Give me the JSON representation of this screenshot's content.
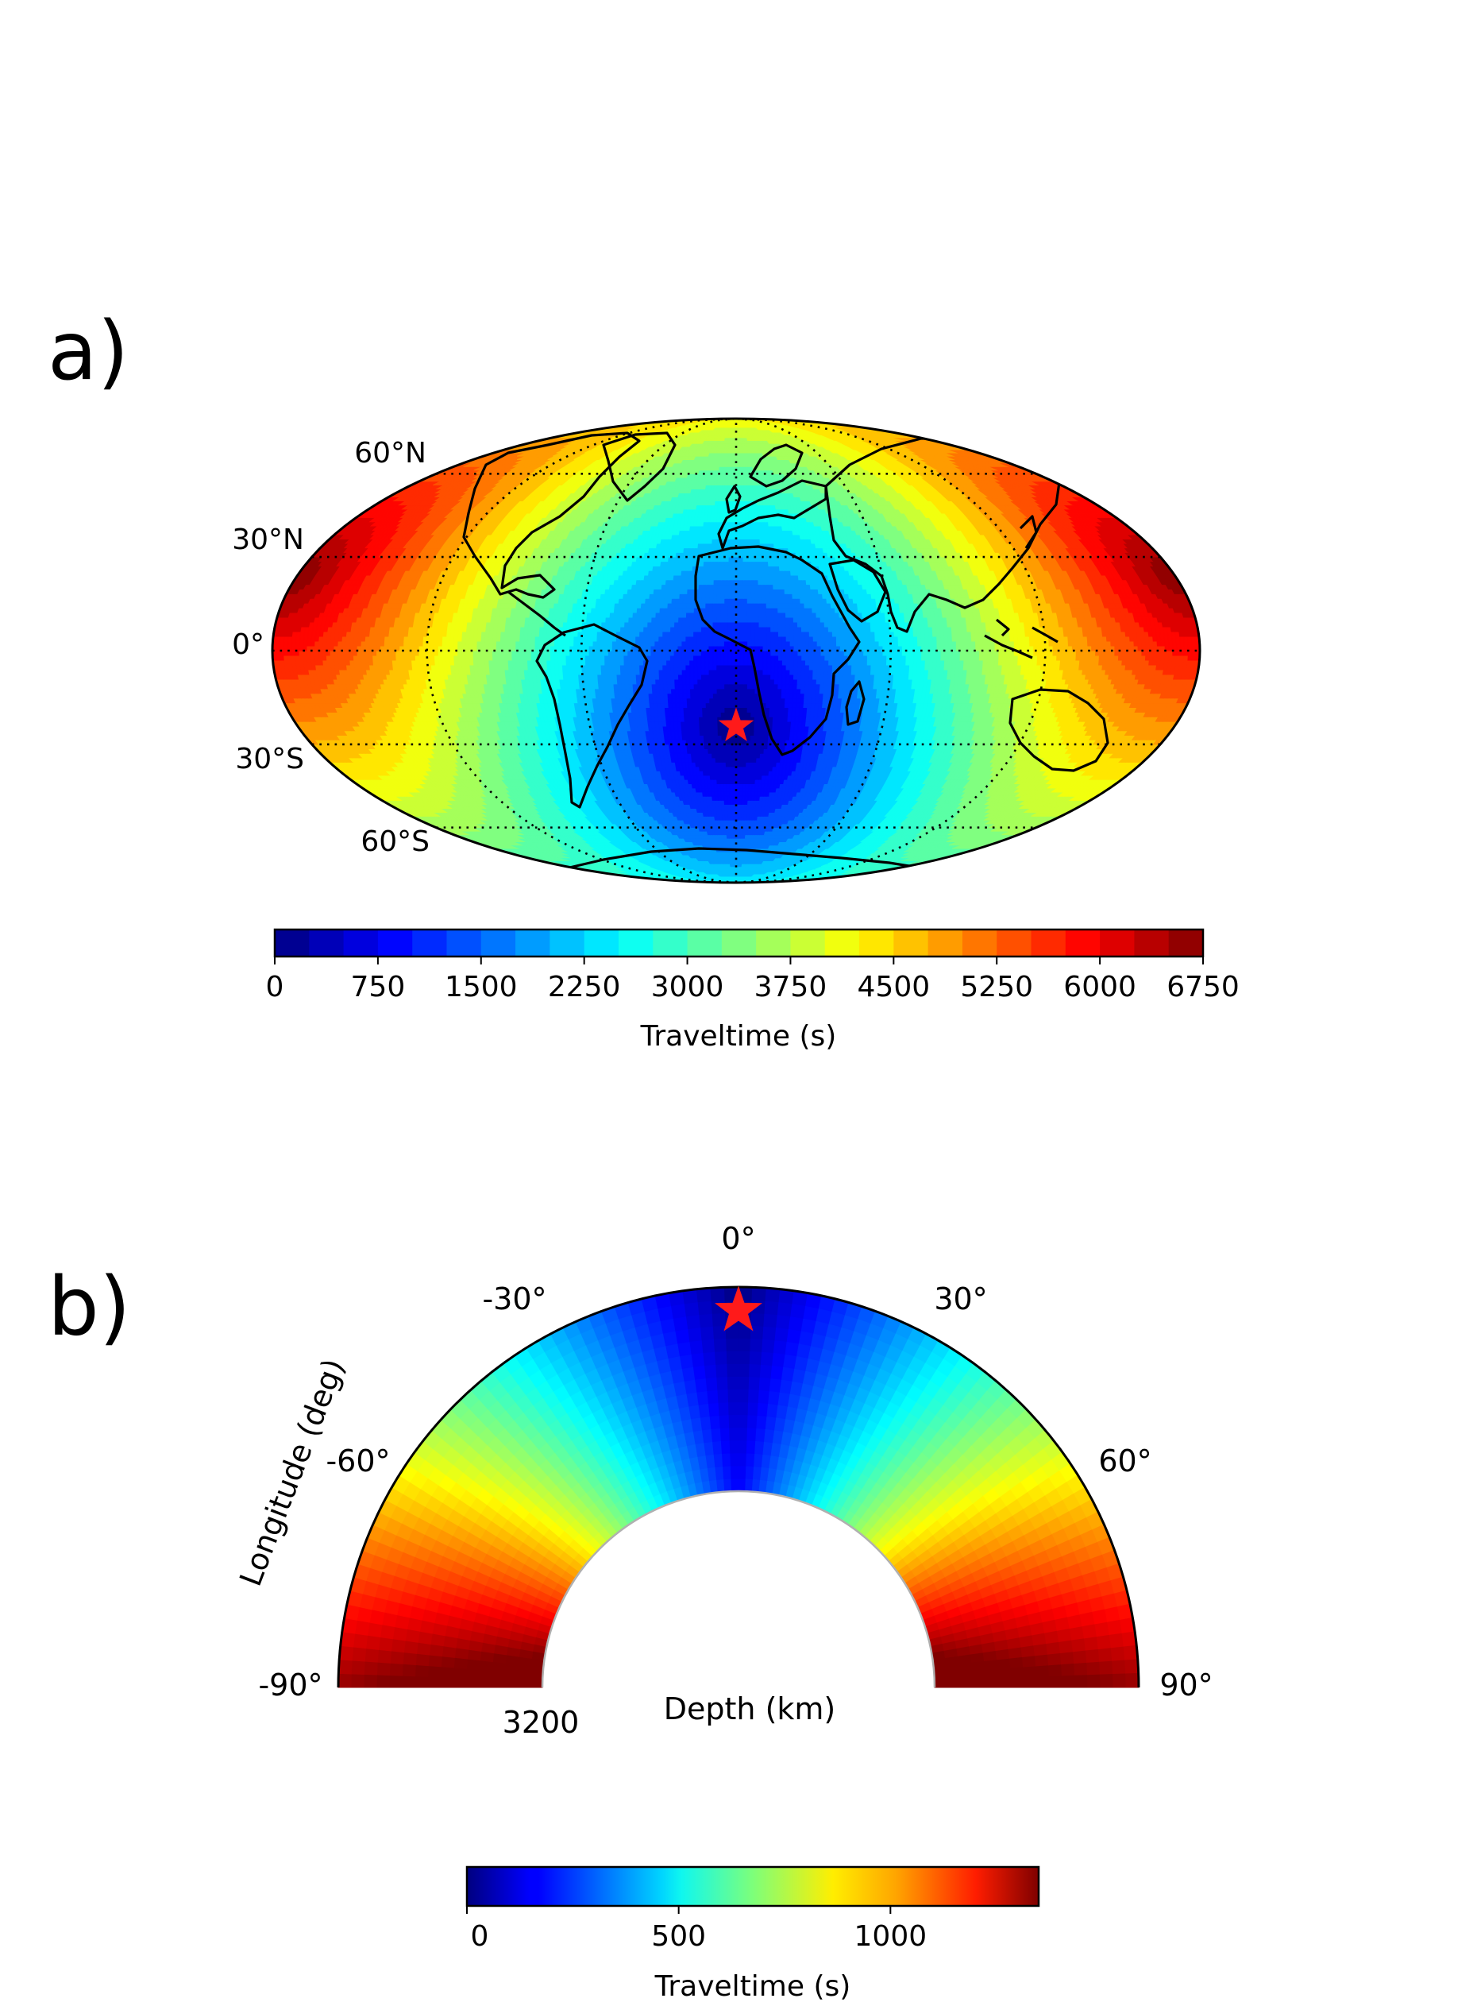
{
  "figure": {
    "panel_a_label": "a)",
    "panel_b_label": "b)"
  },
  "chart_data": [
    {
      "panel": "a)",
      "type": "heatmap",
      "projection": "mollweide",
      "description_of_field": "filled contours of surface traveltime from a source, jet colormap",
      "source": {
        "lon": 0,
        "lat": -24,
        "marker": "star",
        "color": "#ff0000"
      },
      "central_longitude": 0,
      "gridlines": {
        "style": "dotted",
        "lat": [
          60,
          30,
          0,
          -30,
          -60
        ],
        "lon": [
          -120,
          -60,
          0,
          60,
          120
        ]
      },
      "lat_labels": [
        "60°N",
        "30°N",
        "0°",
        "30°S",
        "60°S"
      ],
      "max_traveltime": 6750,
      "colorbar": {
        "label": "Traveltime (s)",
        "levels": [
          0,
          250,
          500,
          750,
          1000,
          1250,
          1500,
          1750,
          2000,
          2250,
          2500,
          2750,
          3000,
          3250,
          3500,
          3750,
          4000,
          4250,
          4500,
          4750,
          5000,
          5250,
          5500,
          5750,
          6000,
          6250,
          6500,
          6750
        ],
        "ticks": [
          0,
          750,
          1500,
          2250,
          3000,
          3750,
          4500,
          5250,
          6000,
          6750
        ],
        "tick_labels": [
          "0",
          "750",
          "1500",
          "2250",
          "3000",
          "3750",
          "4500",
          "5250",
          "6000",
          "6750"
        ],
        "orientation": "horizontal",
        "colormap": "jet"
      }
    },
    {
      "panel": "b)",
      "type": "heatmap",
      "projection": "polar half-annulus",
      "description_of_field": "continuous traveltime in a vertical cross-section, jet colormap",
      "source": {
        "angle": 0,
        "depth": 0,
        "marker": "star",
        "color": "#ff0000"
      },
      "angle_range": [
        -90,
        90
      ],
      "angle_ticks": [
        -90,
        -60,
        -30,
        0,
        30,
        60,
        90
      ],
      "angle_tick_labels": [
        "-90°",
        "-60°",
        "-30°",
        "0°",
        "30°",
        "60°",
        "90°"
      ],
      "ylabel": "Longitude (deg)",
      "xlabel": "Depth (km)",
      "depth_tick_labels": [
        "3200"
      ],
      "max_depth": 3200,
      "colorbar": {
        "label": "Traveltime (s)",
        "range": [
          0,
          1350
        ],
        "ticks": [
          0,
          500,
          1000
        ],
        "tick_labels": [
          "0",
          "500",
          "1000"
        ],
        "orientation": "horizontal",
        "colormap": "jet"
      }
    }
  ]
}
